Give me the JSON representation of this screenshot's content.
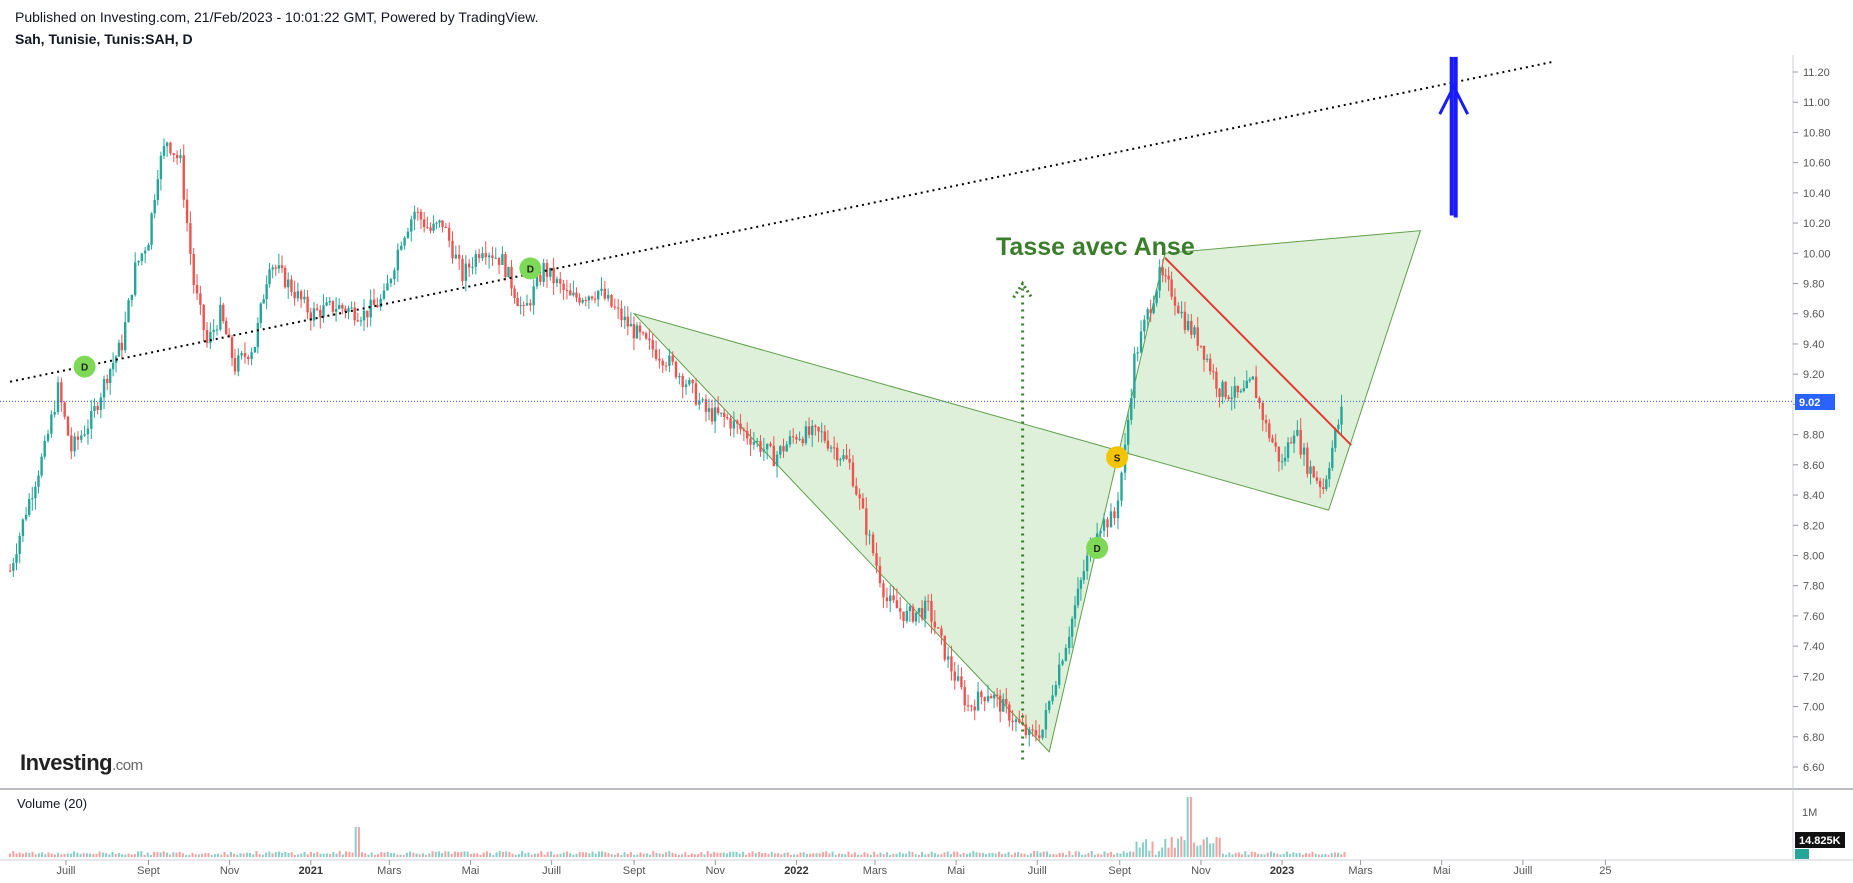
{
  "header": {
    "published": "Published on Investing.com, 21/Feb/2023 - 10:01:22 GMT, Powered by TradingView.",
    "symbol": "Sah, Tunisie, Tunis:SAH, D"
  },
  "logo": {
    "brand": "Investing",
    "suffix": ".com"
  },
  "volume": {
    "label": "Volume (20)",
    "axis_tick": "1M",
    "last_value": "14.825K"
  },
  "colors": {
    "up": "#26a69a",
    "down": "#ef5350",
    "pattern_fill": "#c8e6c0",
    "pattern_stroke": "#5f9f4a",
    "title_green": "#3a7d2a",
    "resistance_red": "#e53935",
    "arrow_blue": "#1a1aff",
    "marker_d": "#7ed957",
    "marker_s": "#f5c400",
    "price_line": "#2962ff",
    "trend_dotted": "#000000"
  },
  "chart_data": {
    "type": "line",
    "title": "",
    "annotation": "Tasse avec Anse",
    "xlabel": "",
    "ylabel": "",
    "x_ticks": [
      {
        "label": "Juill",
        "bold": false,
        "date": "2020-07-01"
      },
      {
        "label": "Sept",
        "bold": false,
        "date": "2020-09-01"
      },
      {
        "label": "Nov",
        "bold": false,
        "date": "2020-11-01"
      },
      {
        "label": "2021",
        "bold": true,
        "date": "2021-01-01"
      },
      {
        "label": "Mars",
        "bold": false,
        "date": "2021-03-01"
      },
      {
        "label": "Mai",
        "bold": false,
        "date": "2021-05-01"
      },
      {
        "label": "Juill",
        "bold": false,
        "date": "2021-07-01"
      },
      {
        "label": "Sept",
        "bold": false,
        "date": "2021-09-01"
      },
      {
        "label": "Nov",
        "bold": false,
        "date": "2021-11-01"
      },
      {
        "label": "2022",
        "bold": true,
        "date": "2022-01-01"
      },
      {
        "label": "Mars",
        "bold": false,
        "date": "2022-03-01"
      },
      {
        "label": "Mai",
        "bold": false,
        "date": "2022-05-01"
      },
      {
        "label": "Juill",
        "bold": false,
        "date": "2022-07-01"
      },
      {
        "label": "Sept",
        "bold": false,
        "date": "2022-09-01"
      },
      {
        "label": "Nov",
        "bold": false,
        "date": "2022-11-01"
      },
      {
        "label": "2023",
        "bold": true,
        "date": "2023-01-01"
      },
      {
        "label": "Mars",
        "bold": false,
        "date": "2023-03-01"
      },
      {
        "label": "Mai",
        "bold": false,
        "date": "2023-05-01"
      },
      {
        "label": "Juill",
        "bold": false,
        "date": "2023-07-01"
      },
      {
        "label": "25",
        "bold": false,
        "date": "2023-09-01"
      }
    ],
    "y_ticks": [
      "11.20",
      "11.00",
      "10.80",
      "10.60",
      "10.40",
      "10.20",
      "10.00",
      "9.80",
      "9.60",
      "9.40",
      "9.20",
      "9.00",
      "8.80",
      "8.60",
      "8.40",
      "8.20",
      "8.00",
      "7.80",
      "7.60",
      "7.40",
      "7.20",
      "7.00",
      "6.80",
      "6.60"
    ],
    "ylim": [
      6.6,
      11.2
    ],
    "current_price": "9.02",
    "price_path": [
      {
        "date": "2020-05-20",
        "close": 7.9
      },
      {
        "date": "2020-06-01",
        "close": 8.3
      },
      {
        "date": "2020-06-15",
        "close": 8.7
      },
      {
        "date": "2020-06-25",
        "close": 9.1
      },
      {
        "date": "2020-07-05",
        "close": 8.7
      },
      {
        "date": "2020-07-20",
        "close": 8.9
      },
      {
        "date": "2020-08-01",
        "close": 9.2
      },
      {
        "date": "2020-08-12",
        "close": 9.4
      },
      {
        "date": "2020-08-22",
        "close": 9.9
      },
      {
        "date": "2020-09-01",
        "close": 10.1
      },
      {
        "date": "2020-09-08",
        "close": 10.55
      },
      {
        "date": "2020-09-15",
        "close": 10.75
      },
      {
        "date": "2020-09-25",
        "close": 10.6
      },
      {
        "date": "2020-10-05",
        "close": 9.8
      },
      {
        "date": "2020-10-15",
        "close": 9.4
      },
      {
        "date": "2020-10-25",
        "close": 9.6
      },
      {
        "date": "2020-11-05",
        "close": 9.25
      },
      {
        "date": "2020-11-20",
        "close": 9.4
      },
      {
        "date": "2020-12-01",
        "close": 9.95
      },
      {
        "date": "2020-12-15",
        "close": 9.8
      },
      {
        "date": "2021-01-01",
        "close": 9.6
      },
      {
        "date": "2021-01-20",
        "close": 9.65
      },
      {
        "date": "2021-02-10",
        "close": 9.6
      },
      {
        "date": "2021-02-25",
        "close": 9.7
      },
      {
        "date": "2021-03-10",
        "close": 10.1
      },
      {
        "date": "2021-03-20",
        "close": 10.28
      },
      {
        "date": "2021-04-01",
        "close": 10.15
      },
      {
        "date": "2021-04-10",
        "close": 10.2
      },
      {
        "date": "2021-04-25",
        "close": 9.85
      },
      {
        "date": "2021-05-10",
        "close": 10.05
      },
      {
        "date": "2021-05-25",
        "close": 9.95
      },
      {
        "date": "2021-06-10",
        "close": 9.6
      },
      {
        "date": "2021-06-25",
        "close": 9.9
      },
      {
        "date": "2021-07-15",
        "close": 9.7
      },
      {
        "date": "2021-08-05",
        "close": 9.75
      },
      {
        "date": "2021-08-25",
        "close": 9.55
      },
      {
        "date": "2021-09-10",
        "close": 9.4
      },
      {
        "date": "2021-09-25",
        "close": 9.3
      },
      {
        "date": "2021-10-10",
        "close": 9.15
      },
      {
        "date": "2021-10-25",
        "close": 8.95
      },
      {
        "date": "2021-11-10",
        "close": 8.9
      },
      {
        "date": "2021-11-25",
        "close": 8.8
      },
      {
        "date": "2021-12-15",
        "close": 8.65
      },
      {
        "date": "2022-01-01",
        "close": 8.8
      },
      {
        "date": "2022-01-20",
        "close": 8.8
      },
      {
        "date": "2022-02-10",
        "close": 8.6
      },
      {
        "date": "2022-02-25",
        "close": 8.1
      },
      {
        "date": "2022-03-10",
        "close": 7.7
      },
      {
        "date": "2022-03-25",
        "close": 7.6
      },
      {
        "date": "2022-04-10",
        "close": 7.65
      },
      {
        "date": "2022-04-25",
        "close": 7.3
      },
      {
        "date": "2022-05-10",
        "close": 7.0
      },
      {
        "date": "2022-05-25",
        "close": 7.1
      },
      {
        "date": "2022-06-10",
        "close": 6.95
      },
      {
        "date": "2022-06-25",
        "close": 6.8
      },
      {
        "date": "2022-07-05",
        "close": 6.85
      },
      {
        "date": "2022-07-15",
        "close": 7.2
      },
      {
        "date": "2022-07-25",
        "close": 7.5
      },
      {
        "date": "2022-08-05",
        "close": 7.9
      },
      {
        "date": "2022-08-15",
        "close": 8.2
      },
      {
        "date": "2022-08-28",
        "close": 8.25
      },
      {
        "date": "2022-09-05",
        "close": 8.7
      },
      {
        "date": "2022-09-12",
        "close": 9.3
      },
      {
        "date": "2022-09-22",
        "close": 9.6
      },
      {
        "date": "2022-10-01",
        "close": 9.85
      },
      {
        "date": "2022-10-10",
        "close": 9.75
      },
      {
        "date": "2022-10-20",
        "close": 9.55
      },
      {
        "date": "2022-11-01",
        "close": 9.4
      },
      {
        "date": "2022-11-15",
        "close": 9.1
      },
      {
        "date": "2022-12-01",
        "close": 9.05
      },
      {
        "date": "2022-12-10",
        "close": 9.15
      },
      {
        "date": "2022-12-20",
        "close": 8.85
      },
      {
        "date": "2023-01-01",
        "close": 8.6
      },
      {
        "date": "2023-01-10",
        "close": 8.85
      },
      {
        "date": "2023-01-20",
        "close": 8.6
      },
      {
        "date": "2023-02-01",
        "close": 8.45
      },
      {
        "date": "2023-02-10",
        "close": 8.8
      },
      {
        "date": "2023-02-17",
        "close": 9.02
      }
    ],
    "pattern_triangle": [
      {
        "date": "2021-09-01",
        "price": 9.6
      },
      {
        "date": "2022-07-10",
        "price": 6.7
      },
      {
        "date": "2022-10-05",
        "price": 10.0
      },
      {
        "date": "2023-04-15",
        "price": 10.15
      },
      {
        "date": "2023-02-05",
        "price": 8.3
      }
    ],
    "dotted_trendline": [
      {
        "date": "2020-05-20",
        "price": 9.15
      },
      {
        "date": "2023-07-25",
        "price": 11.27
      }
    ],
    "resistance_line": [
      {
        "date": "2022-10-05",
        "price": 9.97
      },
      {
        "date": "2023-02-22",
        "price": 8.73
      }
    ],
    "cup_depth_arrow": {
      "date": "2022-06-20",
      "from": 6.65,
      "to": 9.8
    },
    "target_arrow": {
      "date": "2023-05-10",
      "from": 10.25,
      "to": 11.3
    },
    "markers": [
      {
        "label": "D",
        "type": "d",
        "date": "2020-07-15",
        "price": 9.25
      },
      {
        "label": "D",
        "type": "d",
        "date": "2021-06-15",
        "price": 9.9
      },
      {
        "label": "D",
        "type": "d",
        "date": "2022-08-15",
        "price": 8.05
      },
      {
        "label": "S",
        "type": "s",
        "date": "2022-08-30",
        "price": 8.65
      }
    ],
    "grid": false,
    "legend": "none"
  }
}
